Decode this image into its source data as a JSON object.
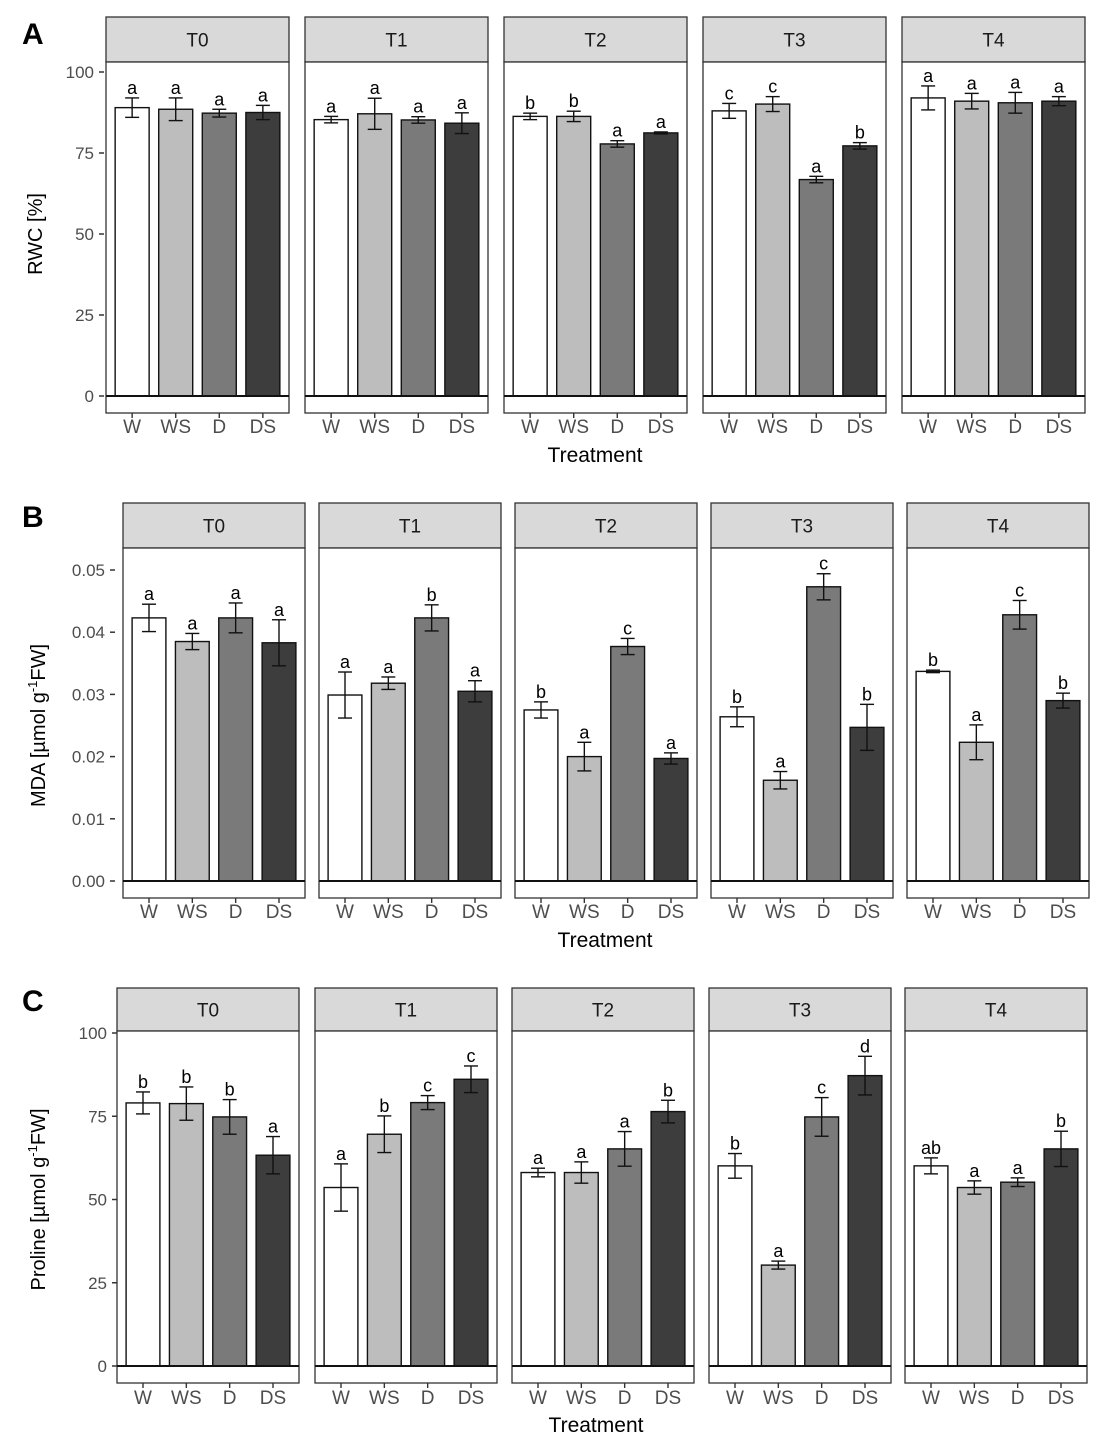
{
  "figure": {
    "background": "#ffffff",
    "strip_fill": "#d9d9d9",
    "frame_color": "#333333",
    "tick_label_color": "#4d4d4d"
  },
  "chart_data": [
    {
      "type": "bar",
      "panel_label": "A",
      "ylabel": "RWC [%]",
      "xlabel": "Treatment",
      "ylim": [
        0,
        100
      ],
      "yticks": [
        "0",
        "25",
        "50",
        "75",
        "100"
      ],
      "ytick_values": [
        0,
        25,
        50,
        75,
        100
      ],
      "categories": [
        "W",
        "WS",
        "D",
        "DS"
      ],
      "colors": [
        "#ffffff",
        "#bdbdbd",
        "#7a7a7a",
        "#3d3d3d"
      ],
      "facets": [
        {
          "label": "T0",
          "values": [
            89,
            88.5,
            87.3,
            87.5
          ],
          "errors": [
            3,
            3.5,
            1.2,
            2.2
          ],
          "letters": [
            "a",
            "a",
            "a",
            "a"
          ]
        },
        {
          "label": "T1",
          "values": [
            85.3,
            87.1,
            85.2,
            84.2
          ],
          "errors": [
            1,
            4.8,
            1,
            3.2
          ],
          "letters": [
            "a",
            "a",
            "a",
            "a"
          ]
        },
        {
          "label": "T2",
          "values": [
            86.3,
            86.3,
            77.8,
            81.2
          ],
          "errors": [
            1,
            1.6,
            1,
            0.3
          ],
          "letters": [
            "b",
            "b",
            "a",
            "a"
          ]
        },
        {
          "label": "T3",
          "values": [
            88,
            90.1,
            66.8,
            77.2
          ],
          "errors": [
            2.3,
            2.3,
            1,
            1
          ],
          "letters": [
            "c",
            "c",
            "a",
            "b"
          ]
        },
        {
          "label": "T4",
          "values": [
            92,
            91,
            90.5,
            91
          ],
          "errors": [
            3.7,
            2.4,
            3.2,
            1.4
          ],
          "letters": [
            "a",
            "a",
            "a",
            "a"
          ]
        }
      ]
    },
    {
      "type": "bar",
      "panel_label": "B",
      "ylabel_prefix": "MDA [µmol g",
      "ylabel_superscript": "-1",
      "ylabel_suffix": "FW]",
      "xlabel": "Treatment",
      "ylim": [
        0,
        0.05
      ],
      "yticks": [
        "0.00",
        "0.01",
        "0.02",
        "0.03",
        "0.04",
        "0.05"
      ],
      "ytick_values": [
        0,
        0.01,
        0.02,
        0.03,
        0.04,
        0.05
      ],
      "categories": [
        "W",
        "WS",
        "D",
        "DS"
      ],
      "colors": [
        "#ffffff",
        "#bdbdbd",
        "#7a7a7a",
        "#3d3d3d"
      ],
      "facets": [
        {
          "label": "T0",
          "values": [
            0.0423,
            0.0385,
            0.0423,
            0.0383
          ],
          "errors": [
            0.0022,
            0.0013,
            0.0024,
            0.0037
          ],
          "letters": [
            "a",
            "a",
            "a",
            "a"
          ]
        },
        {
          "label": "T1",
          "values": [
            0.0299,
            0.0318,
            0.0423,
            0.0305
          ],
          "errors": [
            0.0037,
            0.001,
            0.0021,
            0.0017
          ],
          "letters": [
            "a",
            "a",
            "b",
            "a"
          ]
        },
        {
          "label": "T2",
          "values": [
            0.0275,
            0.02,
            0.0377,
            0.0197
          ],
          "errors": [
            0.0013,
            0.0023,
            0.0013,
            0.0009
          ],
          "letters": [
            "b",
            "a",
            "c",
            "a"
          ]
        },
        {
          "label": "T3",
          "values": [
            0.0264,
            0.0162,
            0.0473,
            0.0247
          ],
          "errors": [
            0.0016,
            0.0014,
            0.0021,
            0.0037
          ],
          "letters": [
            "b",
            "a",
            "c",
            "b"
          ]
        },
        {
          "label": "T4",
          "values": [
            0.0337,
            0.0223,
            0.0428,
            0.029
          ],
          "errors": [
            0.0002,
            0.0028,
            0.0023,
            0.0012
          ],
          "letters": [
            "b",
            "a",
            "c",
            "b"
          ]
        }
      ]
    },
    {
      "type": "bar",
      "panel_label": "C",
      "ylabel_prefix": "Proline [µmol g",
      "ylabel_superscript": "-1",
      "ylabel_suffix": "FW]",
      "xlabel": "Treatment",
      "ylim": [
        0,
        100
      ],
      "yticks": [
        "0",
        "25",
        "50",
        "75",
        "100"
      ],
      "ytick_values": [
        0,
        25,
        50,
        75,
        100
      ],
      "categories": [
        "W",
        "WS",
        "D",
        "DS"
      ],
      "colors": [
        "#ffffff",
        "#bdbdbd",
        "#7a7a7a",
        "#3d3d3d"
      ],
      "facets": [
        {
          "label": "T0",
          "values": [
            79,
            78.8,
            74.8,
            63.3
          ],
          "errors": [
            3.3,
            5,
            5.2,
            5.6
          ],
          "letters": [
            "b",
            "b",
            "b",
            "a"
          ]
        },
        {
          "label": "T1",
          "values": [
            53.6,
            69.6,
            79.1,
            86.1
          ],
          "errors": [
            7.1,
            5.5,
            2.1,
            4
          ],
          "letters": [
            "a",
            "b",
            "c",
            "c"
          ]
        },
        {
          "label": "T2",
          "values": [
            58.1,
            58.1,
            65.2,
            76.4
          ],
          "errors": [
            1.3,
            3.2,
            5.2,
            3.4
          ],
          "letters": [
            "a",
            "a",
            "a",
            "b"
          ]
        },
        {
          "label": "T3",
          "values": [
            60.1,
            30.3,
            74.8,
            87.2
          ],
          "errors": [
            3.7,
            1.2,
            5.8,
            5.8
          ],
          "letters": [
            "b",
            "a",
            "c",
            "d"
          ]
        },
        {
          "label": "T4",
          "values": [
            60.1,
            53.6,
            55.2,
            65.2
          ],
          "errors": [
            2.4,
            2,
            1.3,
            5.3
          ],
          "letters": [
            "ab",
            "a",
            "a",
            "b"
          ]
        }
      ]
    }
  ]
}
